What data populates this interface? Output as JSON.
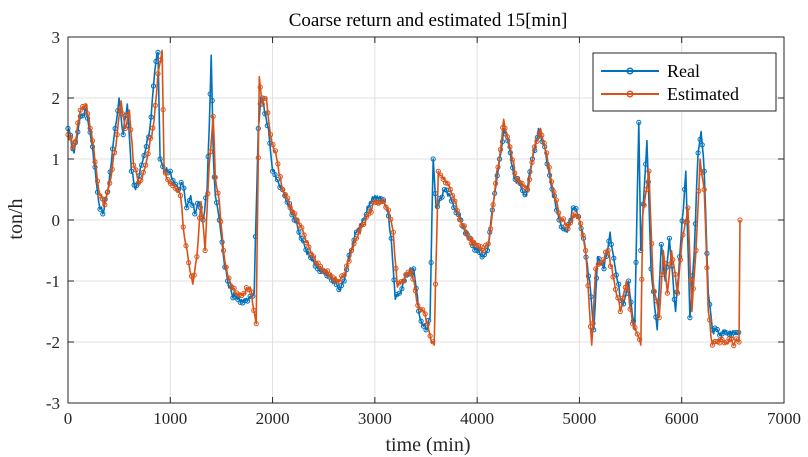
{
  "chart_data": {
    "type": "line",
    "title": "Coarse return and estimated 15[min]",
    "xlabel": "time (min)",
    "ylabel": "ton/h",
    "xlim": [
      0,
      7000
    ],
    "ylim": [
      -3,
      3
    ],
    "x_ticks": [
      0,
      1000,
      2000,
      3000,
      4000,
      5000,
      6000,
      7000
    ],
    "y_ticks": [
      3,
      2,
      1,
      0,
      -1,
      -2,
      -3
    ],
    "grid": true,
    "legend_position": "top-right",
    "legend": [
      "Real",
      "Estimated"
    ],
    "series": [
      {
        "name": "Real",
        "color": "#0072BD",
        "marker": "circle",
        "points": [
          [
            0,
            1.5
          ],
          [
            60,
            1.1
          ],
          [
            120,
            1.7
          ],
          [
            180,
            1.8
          ],
          [
            240,
            1.2
          ],
          [
            300,
            0.3
          ],
          [
            340,
            0.1
          ],
          [
            400,
            0.6
          ],
          [
            460,
            1.5
          ],
          [
            500,
            2.0
          ],
          [
            540,
            1.4
          ],
          [
            580,
            1.9
          ],
          [
            620,
            0.8
          ],
          [
            660,
            0.5
          ],
          [
            720,
            0.9
          ],
          [
            800,
            1.5
          ],
          [
            860,
            2.6
          ],
          [
            880,
            2.75
          ],
          [
            900,
            1.0
          ],
          [
            940,
            0.8
          ],
          [
            1000,
            0.8
          ],
          [
            1040,
            0.6
          ],
          [
            1080,
            0.5
          ],
          [
            1120,
            0.6
          ],
          [
            1160,
            0.2
          ],
          [
            1200,
            0.4
          ],
          [
            1240,
            0.1
          ],
          [
            1280,
            0.3
          ],
          [
            1320,
            0.0
          ],
          [
            1360,
            0.5
          ],
          [
            1380,
            1.5
          ],
          [
            1400,
            2.7
          ],
          [
            1420,
            1.1
          ],
          [
            1440,
            0.4
          ],
          [
            1480,
            0.0
          ],
          [
            1520,
            -0.6
          ],
          [
            1560,
            -1.0
          ],
          [
            1600,
            -1.2
          ],
          [
            1660,
            -1.3
          ],
          [
            1720,
            -1.3
          ],
          [
            1780,
            -1.25
          ],
          [
            1820,
            -1.2
          ],
          [
            1860,
            1.5
          ],
          [
            1880,
            1.9
          ],
          [
            1900,
            2.0
          ],
          [
            1960,
            1.5
          ],
          [
            2000,
            0.8
          ],
          [
            2060,
            0.6
          ],
          [
            2120,
            0.4
          ],
          [
            2200,
            0.1
          ],
          [
            2280,
            -0.3
          ],
          [
            2360,
            -0.6
          ],
          [
            2440,
            -0.8
          ],
          [
            2520,
            -0.9
          ],
          [
            2600,
            -1.0
          ],
          [
            2660,
            -1.15
          ],
          [
            2700,
            -1.0
          ],
          [
            2760,
            -0.5
          ],
          [
            2820,
            -0.2
          ],
          [
            2880,
            0.0
          ],
          [
            2940,
            0.2
          ],
          [
            3000,
            0.4
          ],
          [
            3060,
            0.35
          ],
          [
            3120,
            0.2
          ],
          [
            3160,
            -0.3
          ],
          [
            3200,
            -1.3
          ],
          [
            3240,
            -1.2
          ],
          [
            3300,
            -0.9
          ],
          [
            3380,
            -0.8
          ],
          [
            3440,
            -1.6
          ],
          [
            3500,
            -1.8
          ],
          [
            3540,
            -1.6
          ],
          [
            3570,
            1.0
          ],
          [
            3600,
            0.2
          ],
          [
            3680,
            0.5
          ],
          [
            3760,
            0.3
          ],
          [
            3840,
            0.0
          ],
          [
            3920,
            -0.3
          ],
          [
            4000,
            -0.5
          ],
          [
            4060,
            -0.6
          ],
          [
            4100,
            -0.5
          ],
          [
            4160,
            0.3
          ],
          [
            4220,
            1.0
          ],
          [
            4260,
            1.5
          ],
          [
            4300,
            1.3
          ],
          [
            4360,
            0.7
          ],
          [
            4420,
            0.6
          ],
          [
            4480,
            0.4
          ],
          [
            4540,
            1.0
          ],
          [
            4600,
            1.5
          ],
          [
            4660,
            1.2
          ],
          [
            4720,
            0.6
          ],
          [
            4800,
            0.0
          ],
          [
            4880,
            -0.2
          ],
          [
            4940,
            0.2
          ],
          [
            4980,
            0.1
          ],
          [
            5040,
            -0.3
          ],
          [
            5100,
            -1.0
          ],
          [
            5140,
            -1.8
          ],
          [
            5180,
            -0.6
          ],
          [
            5240,
            -0.8
          ],
          [
            5300,
            -0.2
          ],
          [
            5360,
            -0.9
          ],
          [
            5420,
            -1.4
          ],
          [
            5480,
            -1.0
          ],
          [
            5540,
            -1.8
          ],
          [
            5580,
            1.6
          ],
          [
            5600,
            -0.5
          ],
          [
            5660,
            1.3
          ],
          [
            5700,
            -0.8
          ],
          [
            5760,
            -1.8
          ],
          [
            5800,
            -0.4
          ],
          [
            5840,
            -1.0
          ],
          [
            5880,
            -0.3
          ],
          [
            5940,
            -1.5
          ],
          [
            5980,
            -0.6
          ],
          [
            6040,
            0.8
          ],
          [
            6080,
            -1.6
          ],
          [
            6120,
            -0.6
          ],
          [
            6160,
            1.1
          ],
          [
            6190,
            1.45
          ],
          [
            6220,
            0.8
          ],
          [
            6260,
            -1.2
          ],
          [
            6300,
            -1.8
          ],
          [
            6360,
            -1.85
          ],
          [
            6440,
            -1.85
          ],
          [
            6520,
            -1.85
          ],
          [
            6570,
            -1.85
          ]
        ]
      },
      {
        "name": "Estimated",
        "color": "#D95319",
        "marker": "circle",
        "points": [
          [
            0,
            1.4
          ],
          [
            60,
            1.2
          ],
          [
            120,
            1.8
          ],
          [
            180,
            1.9
          ],
          [
            240,
            1.3
          ],
          [
            300,
            0.5
          ],
          [
            360,
            0.25
          ],
          [
            420,
            0.7
          ],
          [
            480,
            1.4
          ],
          [
            520,
            1.95
          ],
          [
            560,
            1.5
          ],
          [
            600,
            1.8
          ],
          [
            640,
            0.9
          ],
          [
            700,
            0.6
          ],
          [
            760,
            0.9
          ],
          [
            840,
            1.6
          ],
          [
            880,
            2.4
          ],
          [
            920,
            2.78
          ],
          [
            940,
            0.8
          ],
          [
            1000,
            0.6
          ],
          [
            1060,
            0.5
          ],
          [
            1100,
            0.4
          ],
          [
            1140,
            -0.3
          ],
          [
            1180,
            -0.7
          ],
          [
            1220,
            -1.05
          ],
          [
            1260,
            -0.6
          ],
          [
            1300,
            0.3
          ],
          [
            1340,
            -0.5
          ],
          [
            1380,
            0.9
          ],
          [
            1420,
            1.7
          ],
          [
            1440,
            0.7
          ],
          [
            1480,
            0.3
          ],
          [
            1520,
            -0.5
          ],
          [
            1560,
            -0.9
          ],
          [
            1600,
            -1.1
          ],
          [
            1660,
            -1.25
          ],
          [
            1720,
            -1.2
          ],
          [
            1780,
            -1.1
          ],
          [
            1840,
            -1.7
          ],
          [
            1870,
            2.35
          ],
          [
            1900,
            1.9
          ],
          [
            1940,
            2.0
          ],
          [
            1980,
            1.4
          ],
          [
            2040,
            1.0
          ],
          [
            2100,
            0.5
          ],
          [
            2160,
            0.3
          ],
          [
            2240,
            0.0
          ],
          [
            2320,
            -0.3
          ],
          [
            2400,
            -0.6
          ],
          [
            2480,
            -0.8
          ],
          [
            2560,
            -0.9
          ],
          [
            2640,
            -1.0
          ],
          [
            2700,
            -0.9
          ],
          [
            2760,
            -0.6
          ],
          [
            2820,
            -0.3
          ],
          [
            2880,
            -0.1
          ],
          [
            2940,
            0.1
          ],
          [
            3000,
            0.3
          ],
          [
            3060,
            0.3
          ],
          [
            3120,
            0.2
          ],
          [
            3180,
            -0.2
          ],
          [
            3220,
            -1.1
          ],
          [
            3280,
            -1.0
          ],
          [
            3360,
            -0.8
          ],
          [
            3420,
            -1.4
          ],
          [
            3480,
            -1.5
          ],
          [
            3540,
            -1.9
          ],
          [
            3580,
            -2.05
          ],
          [
            3620,
            0.8
          ],
          [
            3680,
            0.7
          ],
          [
            3760,
            0.4
          ],
          [
            3840,
            0.0
          ],
          [
            3920,
            -0.3
          ],
          [
            4000,
            -0.4
          ],
          [
            4060,
            -0.5
          ],
          [
            4120,
            -0.3
          ],
          [
            4180,
            0.6
          ],
          [
            4240,
            1.3
          ],
          [
            4260,
            1.65
          ],
          [
            4320,
            1.2
          ],
          [
            4380,
            0.7
          ],
          [
            4440,
            0.6
          ],
          [
            4500,
            0.5
          ],
          [
            4560,
            1.2
          ],
          [
            4620,
            1.5
          ],
          [
            4680,
            1.1
          ],
          [
            4740,
            0.5
          ],
          [
            4820,
            0.0
          ],
          [
            4900,
            -0.1
          ],
          [
            4960,
            0.1
          ],
          [
            5000,
            0.0
          ],
          [
            5060,
            -0.5
          ],
          [
            5120,
            -2.05
          ],
          [
            5160,
            -0.8
          ],
          [
            5220,
            -0.7
          ],
          [
            5280,
            -0.5
          ],
          [
            5340,
            -1.0
          ],
          [
            5400,
            -1.5
          ],
          [
            5460,
            -1.0
          ],
          [
            5520,
            -1.7
          ],
          [
            5600,
            -2.05
          ],
          [
            5620,
            0.1
          ],
          [
            5680,
            0.8
          ],
          [
            5720,
            -1.0
          ],
          [
            5780,
            -1.6
          ],
          [
            5820,
            -0.5
          ],
          [
            5860,
            -1.2
          ],
          [
            5900,
            -0.5
          ],
          [
            5960,
            -1.2
          ],
          [
            6000,
            -0.4
          ],
          [
            6060,
            0.2
          ],
          [
            6100,
            -1.5
          ],
          [
            6140,
            -0.5
          ],
          [
            6180,
            1.0
          ],
          [
            6220,
            0.5
          ],
          [
            6260,
            -1.5
          ],
          [
            6300,
            -2.05
          ],
          [
            6360,
            -1.95
          ],
          [
            6440,
            -2.0
          ],
          [
            6520,
            -2.0
          ],
          [
            6560,
            -2.0
          ],
          [
            6570,
            0.0
          ]
        ]
      }
    ]
  }
}
